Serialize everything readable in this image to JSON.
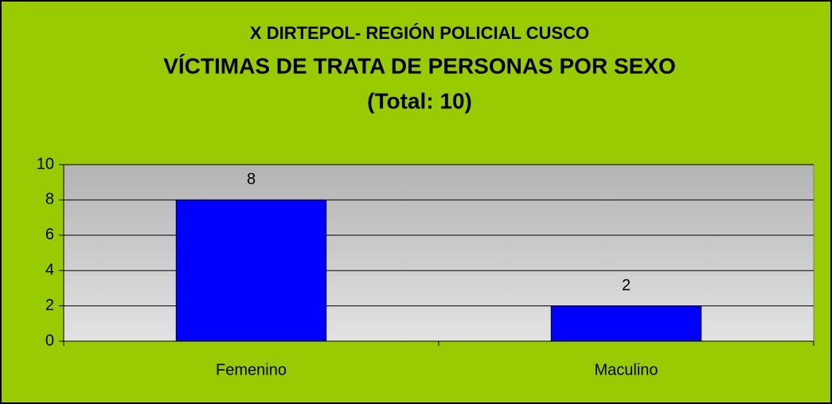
{
  "chart_data": {
    "type": "bar",
    "title": [
      "X DIRTEPOL- REGIÓN POLICIAL CUSCO",
      "VÍCTIMAS DE TRATA DE PERSONAS POR SEXO",
      "(Total: 10)"
    ],
    "categories": [
      "Femenino",
      "Maculino"
    ],
    "values": [
      8,
      2
    ],
    "color": "#0000ff",
    "ylim": [
      0,
      10
    ],
    "yticks": [
      0,
      2,
      4,
      6,
      8,
      10
    ],
    "grid": true
  }
}
